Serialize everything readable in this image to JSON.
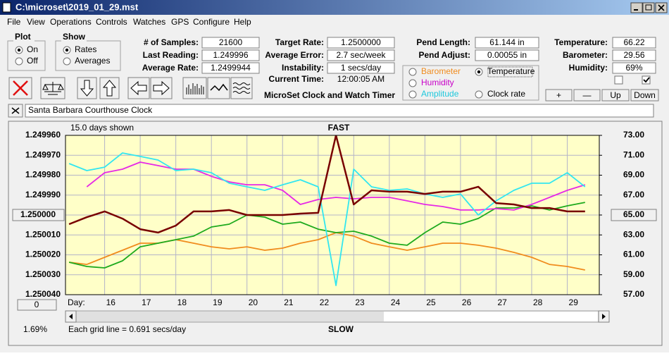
{
  "window": {
    "title": "C:\\microset\\2019_01_29.mst"
  },
  "menu": [
    "File",
    "View",
    "Operations",
    "Controls",
    "Watches",
    "GPS",
    "Configure",
    "Help"
  ],
  "plot_group": {
    "title": "Plot",
    "options": [
      "On",
      "Off"
    ],
    "selected": 0
  },
  "show_group": {
    "title": "Show",
    "options": [
      "Rates",
      "Averages"
    ],
    "selected": 0
  },
  "fields": [
    [
      {
        "label": "# of Samples:",
        "value": "21600"
      },
      {
        "label": "Last Reading:",
        "value": "1.249996"
      },
      {
        "label": "Average Rate:",
        "value": "1.2499944"
      }
    ],
    [
      {
        "label": "Target Rate:",
        "value": "1.2500000"
      },
      {
        "label": "Average Error:",
        "value": "2.7 sec/week"
      },
      {
        "label": "Instability:",
        "value": "1 secs/day"
      },
      {
        "label": "Current Time:",
        "value": "12:00:05 AM"
      }
    ],
    [
      {
        "label": "Pend Length:",
        "value": "61.144 in"
      },
      {
        "label": "Pend Adjust:",
        "value": "0.00055 in"
      }
    ],
    [
      {
        "label": "Temperature:",
        "value": "66.22"
      },
      {
        "label": "Barometer:",
        "value": "29.56"
      },
      {
        "label": "Humidity:",
        "value": "69%"
      }
    ]
  ],
  "checkboxes": [
    false,
    true
  ],
  "buttons": [
    "+",
    "—",
    "Up",
    "Down"
  ],
  "app_name": "MicroSet Clock and Watch Timer",
  "clock_name": "Santa Barbara Courthouse Clock",
  "selected_series": 1,
  "chart_data": {
    "type": "line",
    "days_shown": "15.0 days shown",
    "top_label": "FAST",
    "bottom_label": "SLOW",
    "x_label": "Day:",
    "grid_note": "Each grid line = 0.691 secs/day",
    "percent": "1.69%",
    "offset_button": "0",
    "x": [
      15.0,
      15.5,
      16.0,
      16.5,
      17.0,
      17.5,
      18.0,
      18.5,
      19.0,
      19.5,
      20.0,
      20.5,
      21.0,
      21.5,
      22.0,
      22.5,
      23.0,
      23.5,
      24.0,
      24.5,
      25.0,
      25.5,
      26.0,
      26.5,
      27.0,
      27.5,
      28.0,
      28.5,
      29.0,
      29.5
    ],
    "xlim": [
      14.9,
      29.9
    ],
    "xticks": [
      16,
      17,
      18,
      19,
      20,
      21,
      22,
      23,
      24,
      25,
      26,
      27,
      28,
      29
    ],
    "ylim": [
      1.24996,
      1.25004
    ],
    "y_reversed": true,
    "yticks": [
      {
        "value": 1.24996,
        "label": "1.249960"
      },
      {
        "value": 1.24997,
        "label": "1.249970"
      },
      {
        "value": 1.24998,
        "label": "1.249980"
      },
      {
        "value": 1.24999,
        "label": "1.249990"
      },
      {
        "value": 1.25,
        "label": "1.250000"
      },
      {
        "value": 1.25001,
        "label": "1.250010"
      },
      {
        "value": 1.25002,
        "label": "1.250020"
      },
      {
        "value": 1.25003,
        "label": "1.250030"
      },
      {
        "value": 1.25004,
        "label": "1.250040"
      }
    ],
    "y2lim": [
      57,
      73
    ],
    "y2ticks": [
      {
        "value": 57,
        "label": "57.00"
      },
      {
        "value": 59,
        "label": "59.00"
      },
      {
        "value": 61,
        "label": "61.00"
      },
      {
        "value": 63,
        "label": "63.00"
      },
      {
        "value": 65,
        "label": "65.00"
      },
      {
        "value": 67,
        "label": "67.00"
      },
      {
        "value": 69,
        "label": "69.00"
      },
      {
        "value": 71,
        "label": "71.00"
      },
      {
        "value": 73,
        "label": "73.00"
      }
    ],
    "grid": true,
    "series": [
      {
        "name": "Barometer",
        "color": "#f08c1e",
        "label_color": "#f08c1e",
        "axis": "y2",
        "values": [
          60.26,
          60.04,
          60.75,
          61.46,
          62.17,
          62.17,
          62.52,
          62.17,
          61.81,
          61.6,
          61.81,
          61.46,
          61.67,
          62.17,
          62.52,
          63.23,
          62.88,
          62.17,
          61.81,
          61.46,
          61.81,
          62.17,
          62.17,
          61.96,
          61.67,
          61.25,
          60.75,
          60.04,
          59.83,
          59.48
        ]
      },
      {
        "name": "Temperature",
        "color": "#1eaa1e",
        "label_color": "#000000",
        "axis": "y2",
        "values": [
          60.26,
          59.83,
          59.69,
          60.4,
          61.81,
          62.17,
          62.52,
          62.88,
          63.8,
          64.08,
          65.0,
          64.79,
          64.08,
          64.29,
          63.58,
          63.23,
          63.37,
          62.88,
          62.17,
          61.96,
          63.23,
          64.29,
          64.08,
          64.65,
          65.71,
          65.71,
          65.92,
          65.5,
          65.92,
          66.27
        ]
      },
      {
        "name": "Humidity",
        "color": "#e628e6",
        "label_color": "#c800c8",
        "axis": "y2",
        "values": [
          null,
          67.83,
          69.25,
          69.6,
          70.31,
          69.96,
          69.6,
          69.6,
          68.89,
          68.33,
          68.04,
          68.04,
          67.48,
          66.06,
          66.56,
          66.77,
          66.63,
          66.77,
          66.77,
          66.42,
          66.06,
          65.85,
          65.5,
          65.5,
          65.64,
          65.5,
          66.06,
          66.77,
          67.48,
          68.04
        ]
      },
      {
        "name": "Amplitude",
        "color": "#32e6f0",
        "label_color": "#1ec8dc",
        "axis": "y2",
        "values": [
          70.17,
          69.46,
          69.81,
          71.23,
          70.88,
          70.52,
          69.46,
          69.6,
          69.25,
          68.19,
          67.83,
          67.48,
          68.04,
          68.54,
          67.83,
          57.92,
          69.6,
          67.83,
          67.48,
          67.62,
          67.12,
          66.77,
          67.12,
          65.0,
          66.42,
          67.48,
          68.19,
          68.19,
          69.25,
          67.83
        ]
      },
      {
        "name": "Clock rate",
        "color": "#780000",
        "label_color": "#000000",
        "axis": "y",
        "values": [
          1.2500046,
          1.2500011,
          1.2499982,
          1.2500018,
          1.2500071,
          1.2500088,
          1.2500053,
          1.2499982,
          1.2499982,
          1.2499975,
          1.25,
          1.25,
          1.25,
          1.2499993,
          1.2499989,
          1.24996,
          1.2499947,
          1.2499876,
          1.2499883,
          1.2499883,
          1.2499894,
          1.2499883,
          1.2499883,
          1.2499858,
          1.249994,
          1.2499947,
          1.2499965,
          1.2499965,
          1.2499982,
          1.2499982
        ]
      }
    ]
  }
}
